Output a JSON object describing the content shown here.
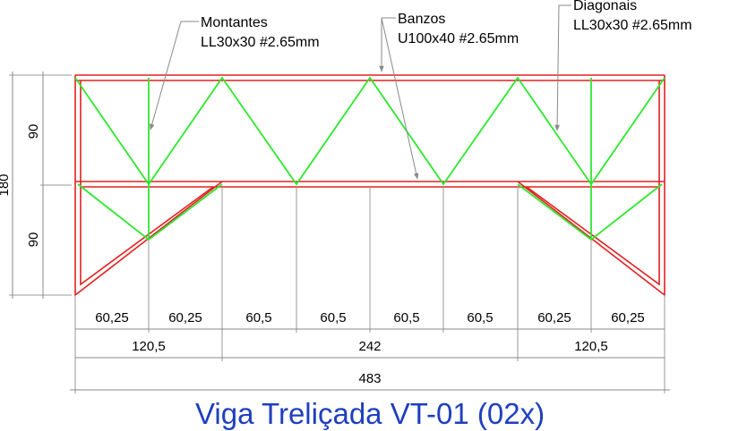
{
  "title": "Viga Treliçada VT-01 (02x)",
  "labels": {
    "montantes": {
      "name": "Montantes",
      "spec": "LL30x30 #2.65mm"
    },
    "banzos": {
      "name": "Banzos",
      "spec": "U100x40 #2.65mm"
    },
    "diagonais": {
      "name": "Diagonais",
      "spec": "LL30x30 #2.65mm"
    }
  },
  "dimensions": {
    "vertical_total": "180",
    "vertical_top": "90",
    "vertical_bottom": "90",
    "row1": [
      "60,25",
      "60,25",
      "60,5",
      "60,5",
      "60,5",
      "60,5",
      "60,25",
      "60,25"
    ],
    "row2": [
      "120,5",
      "242",
      "120,5"
    ],
    "row3": "483"
  },
  "colors": {
    "chord": "#e32020",
    "web": "#2ee82e",
    "dimension": "#8a8a8a",
    "title": "#1f3fbf"
  }
}
